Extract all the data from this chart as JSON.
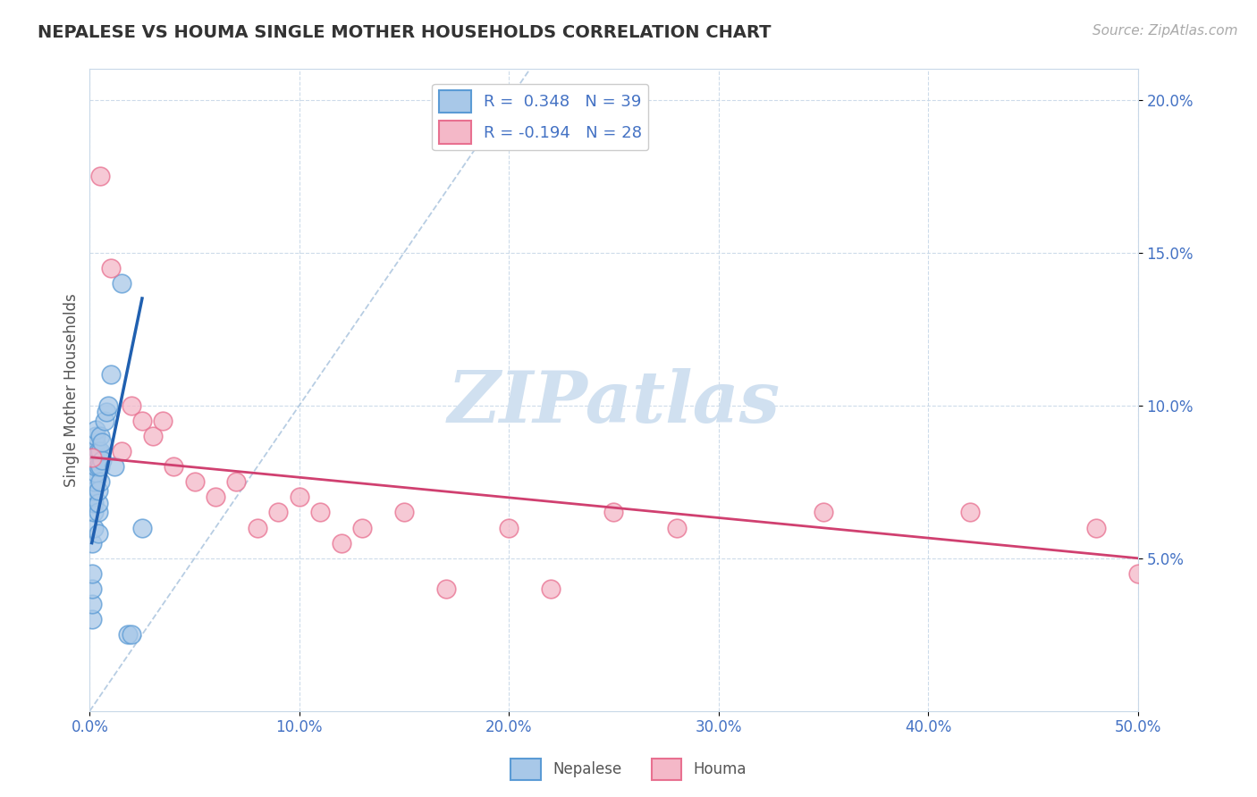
{
  "title": "NEPALESE VS HOUMA SINGLE MOTHER HOUSEHOLDS CORRELATION CHART",
  "source_text": "Source: ZipAtlas.com",
  "ylabel": "Single Mother Households",
  "xlim": [
    0.0,
    0.5
  ],
  "ylim": [
    0.0,
    0.21
  ],
  "xticks": [
    0.0,
    0.1,
    0.2,
    0.3,
    0.4,
    0.5
  ],
  "xticklabels": [
    "0.0%",
    "10.0%",
    "20.0%",
    "30.0%",
    "40.0%",
    "50.0%"
  ],
  "yticks": [
    0.05,
    0.1,
    0.15,
    0.2
  ],
  "yticklabels": [
    "5.0%",
    "10.0%",
    "15.0%",
    "20.0%"
  ],
  "nepalese_color": "#a8c8e8",
  "houma_color": "#f4b8c8",
  "nepalese_edge": "#5b9bd5",
  "houma_edge": "#e87090",
  "line_nepalese_color": "#2060b0",
  "line_houma_color": "#d04070",
  "diagonal_color": "#b0c8e0",
  "background_color": "#ffffff",
  "grid_color": "#c8d8e8",
  "title_color": "#333333",
  "axis_tick_color": "#4472c4",
  "watermark_color": "#d0e0f0",
  "nepalese_x": [
    0.001,
    0.001,
    0.001,
    0.001,
    0.001,
    0.002,
    0.002,
    0.002,
    0.002,
    0.002,
    0.002,
    0.003,
    0.003,
    0.003,
    0.003,
    0.003,
    0.003,
    0.003,
    0.004,
    0.004,
    0.004,
    0.004,
    0.004,
    0.004,
    0.005,
    0.005,
    0.005,
    0.005,
    0.006,
    0.006,
    0.007,
    0.008,
    0.009,
    0.01,
    0.012,
    0.015,
    0.018,
    0.02,
    0.025
  ],
  "nepalese_y": [
    0.03,
    0.035,
    0.04,
    0.045,
    0.055,
    0.06,
    0.065,
    0.068,
    0.07,
    0.072,
    0.075,
    0.078,
    0.08,
    0.082,
    0.085,
    0.088,
    0.09,
    0.092,
    0.058,
    0.065,
    0.068,
    0.072,
    0.08,
    0.085,
    0.075,
    0.08,
    0.085,
    0.09,
    0.082,
    0.088,
    0.095,
    0.098,
    0.1,
    0.11,
    0.08,
    0.14,
    0.025,
    0.025,
    0.06
  ],
  "houma_x": [
    0.001,
    0.005,
    0.01,
    0.015,
    0.02,
    0.025,
    0.03,
    0.035,
    0.04,
    0.05,
    0.06,
    0.07,
    0.08,
    0.09,
    0.1,
    0.11,
    0.12,
    0.13,
    0.15,
    0.17,
    0.2,
    0.22,
    0.25,
    0.28,
    0.35,
    0.42,
    0.48,
    0.5
  ],
  "houma_y": [
    0.083,
    0.175,
    0.145,
    0.085,
    0.1,
    0.095,
    0.09,
    0.095,
    0.08,
    0.075,
    0.07,
    0.075,
    0.06,
    0.065,
    0.07,
    0.065,
    0.055,
    0.06,
    0.065,
    0.04,
    0.06,
    0.04,
    0.065,
    0.06,
    0.065,
    0.065,
    0.06,
    0.045
  ],
  "nepalese_line_x": [
    0.001,
    0.025
  ],
  "nepalese_line_y": [
    0.055,
    0.135
  ],
  "houma_line_x": [
    0.001,
    0.5
  ],
  "houma_line_y": [
    0.083,
    0.05
  ]
}
